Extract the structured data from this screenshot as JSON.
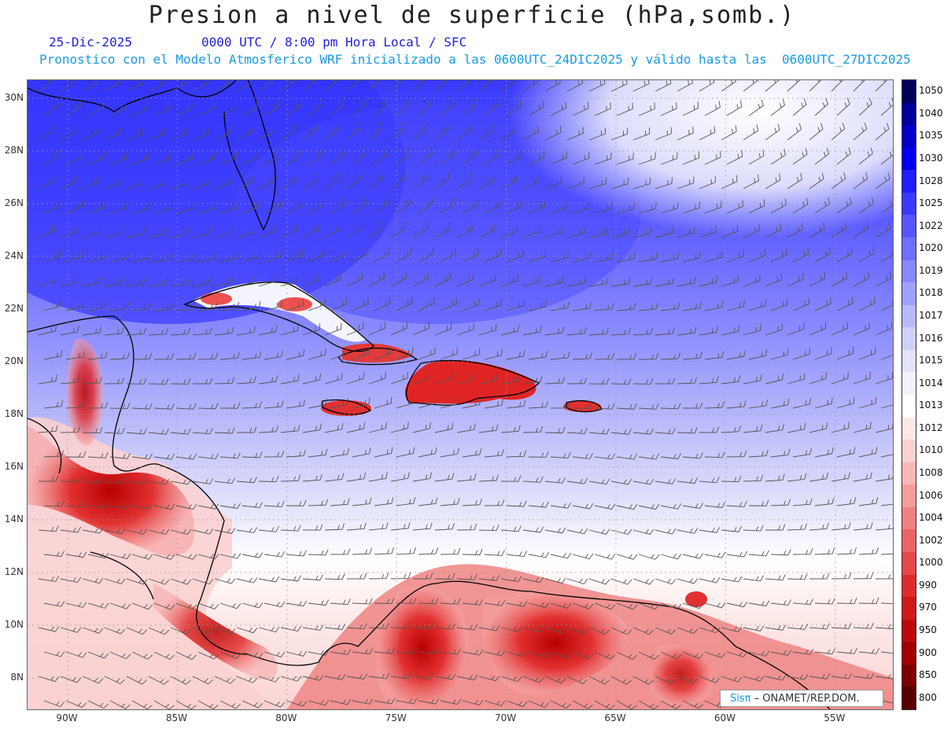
{
  "header": {
    "title": "Presion a nivel de superficie (hPa,somb.)",
    "date": "25-Dic-2025",
    "valid_time": "0000 UTC / 8:00 pm Hora Local / SFC",
    "model_info": "Pronostico con el Modelo Atmosferico WRF inicializado a las 0600UTC_24DIC2025 y válido hasta las  0600UTC_27DIC2025"
  },
  "map": {
    "lat_labels": [
      "30N",
      "28N",
      "26N",
      "24N",
      "22N",
      "20N",
      "18N",
      "16N",
      "14N",
      "12N",
      "10N",
      "8N"
    ],
    "lon_labels": [
      "90W",
      "85W",
      "80W",
      "75W",
      "70W",
      "65W",
      "60W",
      "55W"
    ],
    "colors": {
      "high_dark": "#2c2cff",
      "high_light": "#c8c8f8",
      "low_light": "#fde4e4",
      "low_dark": "#d40000",
      "grid": "#aaaaaa",
      "coast": "#000000",
      "barb": "#555555"
    }
  },
  "colorbar": {
    "labels": [
      "1050",
      "1040",
      "1035",
      "1030",
      "1028",
      "1025",
      "1022",
      "1020",
      "1019",
      "1018",
      "1017",
      "1016",
      "1015",
      "1014",
      "1013",
      "1012",
      "1010",
      "1008",
      "1006",
      "1004",
      "1002",
      "1000",
      "990",
      "970",
      "950",
      "900",
      "850",
      "800"
    ],
    "colors": [
      "#00005a",
      "#00009a",
      "#0000c8",
      "#0000f0",
      "#1e1eff",
      "#3a3aff",
      "#5555ff",
      "#6e6eff",
      "#8888ff",
      "#a0a0ff",
      "#b8b8ff",
      "#cfcffb",
      "#e2e2fb",
      "#f2f2fd",
      "#ffffff",
      "#fde8e8",
      "#fbd0d0",
      "#f9b8b8",
      "#f59c9c",
      "#f08080",
      "#ea6464",
      "#e44848",
      "#dd2c2c",
      "#d01818",
      "#bc0a0a",
      "#a00000",
      "#7c0000",
      "#5a0000"
    ]
  },
  "credit": {
    "logo": "Sisπ",
    "text": "– ONAMET/REP.DOM."
  }
}
